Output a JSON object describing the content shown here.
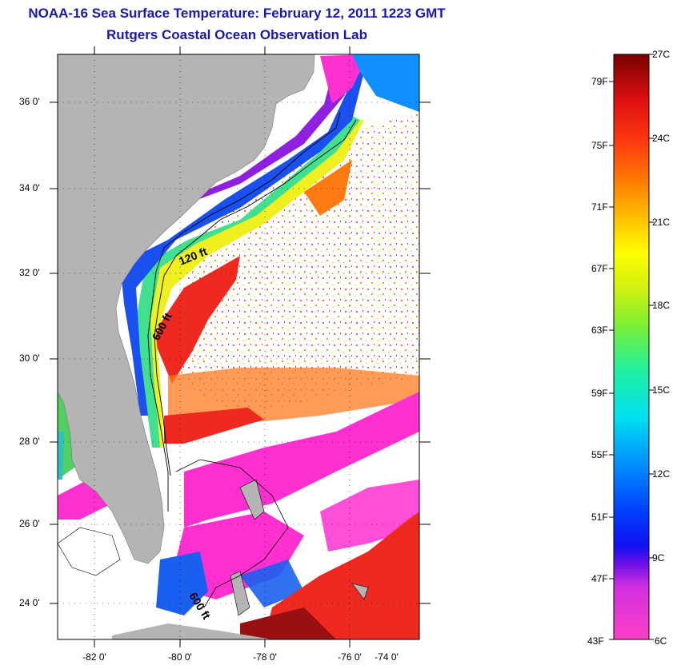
{
  "title": "NOAA-16 Sea Surface Temperature:  February 12, 2011 1223 GMT",
  "subtitle": "Rutgers Coastal Ocean Observation Lab",
  "map": {
    "lat_labels": [
      "36 0'",
      "34 0'",
      "32 0'",
      "30 0'",
      "28 0'",
      "26 0'",
      "24 0'"
    ],
    "lon_labels": [
      "-82 0'",
      "-80 0'",
      "-78 0'",
      "-76 0'",
      "-74 0'"
    ],
    "contour_labels": [
      "120 ft",
      "600 ft",
      "600 ft"
    ],
    "colors": {
      "land": "#b4b4b4",
      "cloud": "#ffffff",
      "warm": "#ee2a20",
      "cold": "#ff2fd0"
    }
  },
  "colorbar": {
    "fahrenheit": [
      "79F",
      "75F",
      "71F",
      "67F",
      "63F",
      "59F",
      "55F",
      "51F",
      "47F",
      "43F"
    ],
    "celsius": [
      "27C",
      "24C",
      "21C",
      "18C",
      "15C",
      "12C",
      "9C",
      "6C"
    ]
  }
}
